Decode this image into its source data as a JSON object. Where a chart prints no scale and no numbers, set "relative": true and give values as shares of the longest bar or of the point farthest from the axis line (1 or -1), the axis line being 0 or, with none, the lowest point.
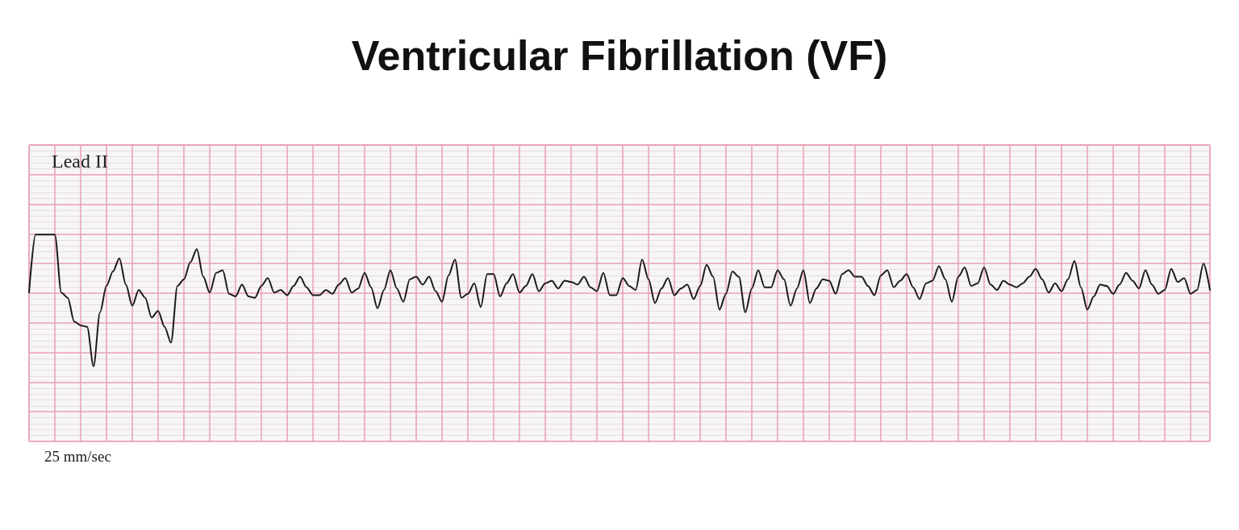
{
  "chart_data": {
    "type": "line",
    "title": "Ventricular Fibrillation (VF)",
    "annotations": [
      "Lead II",
      "25 mm/sec"
    ],
    "relative": true,
    "grid": true,
    "marker": "none",
    "line_style": "solid",
    "categories": [
      null,
      null,
      null,
      null,
      null,
      null,
      null,
      null,
      null,
      null,
      null,
      null,
      null,
      null,
      null,
      null,
      null,
      null,
      null,
      null,
      null,
      null,
      null,
      null,
      null,
      null,
      null,
      null,
      null,
      null,
      null,
      null,
      null,
      null,
      null,
      null,
      null,
      null,
      null,
      null,
      null,
      null,
      null,
      null,
      null,
      null,
      null,
      null,
      null,
      null,
      null,
      null,
      null,
      null,
      null,
      null,
      null,
      null,
      null,
      null,
      null,
      null,
      null,
      null,
      null,
      null,
      null,
      null,
      null,
      null,
      null,
      null,
      null,
      null,
      null,
      null,
      null,
      null,
      null,
      null,
      null,
      null,
      null,
      null,
      null,
      null,
      null,
      null,
      null,
      null,
      null,
      null,
      null,
      null,
      null,
      null,
      null,
      null,
      null,
      null,
      null,
      null,
      null,
      null,
      null,
      null,
      null,
      null,
      null,
      null,
      null,
      null,
      null,
      null,
      null,
      null,
      null,
      null,
      null,
      null,
      null,
      null,
      null,
      null,
      null,
      null,
      null,
      null,
      null,
      null,
      null,
      null,
      null,
      null,
      null,
      null,
      null,
      null,
      null,
      null,
      null,
      null,
      null,
      null,
      null,
      null,
      null,
      null,
      null,
      null,
      null,
      null,
      null,
      null,
      null,
      null,
      null,
      null,
      null,
      null,
      null,
      null,
      null,
      null,
      null,
      null,
      null,
      null,
      null,
      null,
      null,
      null,
      null,
      null,
      null,
      null,
      null,
      null,
      null,
      null,
      null,
      null,
      null,
      null
    ],
    "series": [
      {
        "color": "#1a1a1a",
        "values": [
          0.56,
          1,
          1,
          1,
          1,
          0.56,
          0.52,
          0.34,
          0.31,
          0.3,
          0,
          0.41,
          0.61,
          0.72,
          0.82,
          0.62,
          0.46,
          0.58,
          0.52,
          0.37,
          0.42,
          0.3,
          0.18,
          0.61,
          0.66,
          0.79,
          0.89,
          0.68,
          0.56,
          0.71,
          0.73,
          0.55,
          0.53,
          0.62,
          0.53,
          0.52,
          0.61,
          0.67,
          0.56,
          0.58,
          0.54,
          0.61,
          0.68,
          0.6,
          0.54,
          0.54,
          0.58,
          0.55,
          0.62,
          0.67,
          0.56,
          0.59,
          0.71,
          0.6,
          0.44,
          0.58,
          0.73,
          0.59,
          0.49,
          0.66,
          0.68,
          0.62,
          0.68,
          0.57,
          0.49,
          0.69,
          0.81,
          0.52,
          0.55,
          0.63,
          0.45,
          0.7,
          0.7,
          0.53,
          0.63,
          0.7,
          0.56,
          0.61,
          0.7,
          0.57,
          0.63,
          0.65,
          0.59,
          0.65,
          0.64,
          0.62,
          0.68,
          0.6,
          0.57,
          0.71,
          0.54,
          0.54,
          0.67,
          0.61,
          0.58,
          0.81,
          0.66,
          0.48,
          0.59,
          0.67,
          0.54,
          0.59,
          0.62,
          0.51,
          0.61,
          0.77,
          0.68,
          0.43,
          0.55,
          0.72,
          0.68,
          0.41,
          0.59,
          0.73,
          0.6,
          0.6,
          0.73,
          0.66,
          0.46,
          0.59,
          0.73,
          0.48,
          0.59,
          0.66,
          0.65,
          0.55,
          0.7,
          0.73,
          0.68,
          0.68,
          0.61,
          0.54,
          0.69,
          0.73,
          0.6,
          0.65,
          0.7,
          0.6,
          0.51,
          0.63,
          0.65,
          0.76,
          0.66,
          0.49,
          0.68,
          0.75,
          0.61,
          0.63,
          0.75,
          0.62,
          0.58,
          0.65,
          0.62,
          0.6,
          0.63,
          0.68,
          0.74,
          0.66,
          0.56,
          0.63,
          0.57,
          0.66,
          0.8,
          0.6,
          0.43,
          0.53,
          0.62,
          0.61,
          0.55,
          0.62,
          0.71,
          0.65,
          0.59,
          0.73,
          0.62,
          0.55,
          0.58,
          0.74,
          0.64,
          0.67,
          0.55,
          0.58,
          0.78,
          0.58
        ]
      }
    ]
  }
}
